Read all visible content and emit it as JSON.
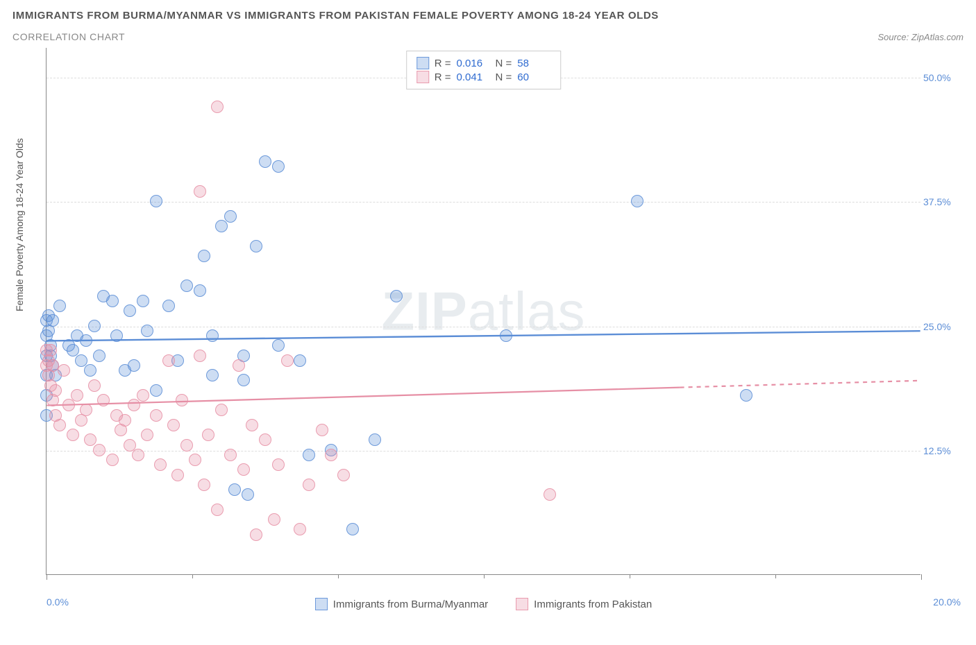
{
  "title": "IMMIGRANTS FROM BURMA/MYANMAR VS IMMIGRANTS FROM PAKISTAN FEMALE POVERTY AMONG 18-24 YEAR OLDS",
  "subtitle": "CORRELATION CHART",
  "source_label": "Source: ZipAtlas.com",
  "watermark_bold": "ZIP",
  "watermark_light": "atlas",
  "y_axis_title": "Female Poverty Among 18-24 Year Olds",
  "chart": {
    "type": "scatter",
    "background_color": "#ffffff",
    "grid_color": "#dddddd",
    "axis_color": "#888888",
    "xlim": [
      0,
      20
    ],
    "ylim": [
      0,
      53
    ],
    "xticks_major": [
      0,
      20
    ],
    "xticks_minor": [
      3.33,
      6.67,
      10,
      13.33,
      16.67
    ],
    "xtick_labels": {
      "0": "0.0%",
      "20": "20.0%"
    },
    "yticks": [
      12.5,
      25,
      37.5,
      50
    ],
    "ytick_labels": {
      "12.5": "12.5%",
      "25": "25.0%",
      "37.5": "37.5%",
      "50": "50.0%"
    },
    "label_color": "#5b8dd6",
    "label_fontsize": 14,
    "marker_radius": 9,
    "marker_opacity_fill": 0.3,
    "marker_opacity_stroke": 0.85
  },
  "series": [
    {
      "name": "Immigrants from Burma/Myanmar",
      "color": "#5b8dd6",
      "fill": "rgba(91,141,214,0.30)",
      "stroke": "rgba(91,141,214,0.85)",
      "R": "0.016",
      "N": "58",
      "trend": {
        "y_at_x0": 23.5,
        "y_at_x20": 24.5,
        "dash_after_x": null,
        "width": 2.4
      },
      "points": [
        [
          0.05,
          24.5
        ],
        [
          0.05,
          26.0
        ],
        [
          0.1,
          23.0
        ],
        [
          0.1,
          22.0
        ],
        [
          0.15,
          25.5
        ],
        [
          0.15,
          21.0
        ],
        [
          0.2,
          20.0
        ],
        [
          0.3,
          27.0
        ],
        [
          0.5,
          23.0
        ],
        [
          0.6,
          22.5
        ],
        [
          0.7,
          24.0
        ],
        [
          0.8,
          21.5
        ],
        [
          0.9,
          23.5
        ],
        [
          1.0,
          20.5
        ],
        [
          1.1,
          25.0
        ],
        [
          1.2,
          22.0
        ],
        [
          1.3,
          28.0
        ],
        [
          1.5,
          27.5
        ],
        [
          1.6,
          24.0
        ],
        [
          1.8,
          20.5
        ],
        [
          1.9,
          26.5
        ],
        [
          2.0,
          21.0
        ],
        [
          2.2,
          27.5
        ],
        [
          2.3,
          24.5
        ],
        [
          2.5,
          37.5
        ],
        [
          2.5,
          18.5
        ],
        [
          2.8,
          27.0
        ],
        [
          3.0,
          21.5
        ],
        [
          3.2,
          29.0
        ],
        [
          3.5,
          28.5
        ],
        [
          3.6,
          32.0
        ],
        [
          3.8,
          24.0
        ],
        [
          3.8,
          20.0
        ],
        [
          4.0,
          35.0
        ],
        [
          4.2,
          36.0
        ],
        [
          4.3,
          8.5
        ],
        [
          4.5,
          19.5
        ],
        [
          4.5,
          22.0
        ],
        [
          4.8,
          33.0
        ],
        [
          4.6,
          8.0
        ],
        [
          5.0,
          41.5
        ],
        [
          5.3,
          41.0
        ],
        [
          5.3,
          23.0
        ],
        [
          5.8,
          21.5
        ],
        [
          6.0,
          12.0
        ],
        [
          6.5,
          12.5
        ],
        [
          7.0,
          4.5
        ],
        [
          8.0,
          28.0
        ],
        [
          7.5,
          13.5
        ],
        [
          10.5,
          24.0
        ],
        [
          13.5,
          37.5
        ],
        [
          16.0,
          18.0
        ],
        [
          0.0,
          16.0
        ],
        [
          0.0,
          18.0
        ],
        [
          0.0,
          20.0
        ],
        [
          0.0,
          22.0
        ],
        [
          0.0,
          24.0
        ],
        [
          0.0,
          25.5
        ]
      ]
    },
    {
      "name": "Immigrants from Pakistan",
      "color": "#e68fa5",
      "fill": "rgba(230,143,165,0.30)",
      "stroke": "rgba(230,143,165,0.85)",
      "R": "0.041",
      "N": "60",
      "trend": {
        "y_at_x0": 17.0,
        "y_at_x20": 19.5,
        "dash_after_x": 14.5,
        "width": 2.2
      },
      "points": [
        [
          0.05,
          21.5
        ],
        [
          0.05,
          20.0
        ],
        [
          0.1,
          22.5
        ],
        [
          0.1,
          19.0
        ],
        [
          0.15,
          17.5
        ],
        [
          0.15,
          21.0
        ],
        [
          0.2,
          16.0
        ],
        [
          0.2,
          18.5
        ],
        [
          0.3,
          15.0
        ],
        [
          0.4,
          20.5
        ],
        [
          0.5,
          17.0
        ],
        [
          0.6,
          14.0
        ],
        [
          0.7,
          18.0
        ],
        [
          0.8,
          15.5
        ],
        [
          0.9,
          16.5
        ],
        [
          1.0,
          13.5
        ],
        [
          1.1,
          19.0
        ],
        [
          1.2,
          12.5
        ],
        [
          1.3,
          17.5
        ],
        [
          1.5,
          11.5
        ],
        [
          1.6,
          16.0
        ],
        [
          1.7,
          14.5
        ],
        [
          1.8,
          15.5
        ],
        [
          1.9,
          13.0
        ],
        [
          2.0,
          17.0
        ],
        [
          2.1,
          12.0
        ],
        [
          2.2,
          18.0
        ],
        [
          2.3,
          14.0
        ],
        [
          2.5,
          16.0
        ],
        [
          2.6,
          11.0
        ],
        [
          2.8,
          21.5
        ],
        [
          2.9,
          15.0
        ],
        [
          3.0,
          10.0
        ],
        [
          3.1,
          17.5
        ],
        [
          3.2,
          13.0
        ],
        [
          3.4,
          11.5
        ],
        [
          3.5,
          22.0
        ],
        [
          3.5,
          38.5
        ],
        [
          3.6,
          9.0
        ],
        [
          3.7,
          14.0
        ],
        [
          3.9,
          6.5
        ],
        [
          3.9,
          47.0
        ],
        [
          4.0,
          16.5
        ],
        [
          4.2,
          12.0
        ],
        [
          4.4,
          21.0
        ],
        [
          4.5,
          10.5
        ],
        [
          4.7,
          15.0
        ],
        [
          4.8,
          4.0
        ],
        [
          5.0,
          13.5
        ],
        [
          5.2,
          5.5
        ],
        [
          5.3,
          11.0
        ],
        [
          5.5,
          21.5
        ],
        [
          5.8,
          4.5
        ],
        [
          6.0,
          9.0
        ],
        [
          6.3,
          14.5
        ],
        [
          6.5,
          12.0
        ],
        [
          6.8,
          10.0
        ],
        [
          11.5,
          8.0
        ],
        [
          0.0,
          21.0
        ],
        [
          0.0,
          22.5
        ]
      ]
    }
  ],
  "stats_labels": {
    "R": "R =",
    "N": "N ="
  },
  "legend_bottom": [
    {
      "label": "Immigrants from Burma/Myanmar",
      "fill": "rgba(91,141,214,0.30)",
      "stroke": "rgba(91,141,214,0.85)"
    },
    {
      "label": "Immigrants from Pakistan",
      "fill": "rgba(230,143,165,0.30)",
      "stroke": "rgba(230,143,165,0.85)"
    }
  ]
}
